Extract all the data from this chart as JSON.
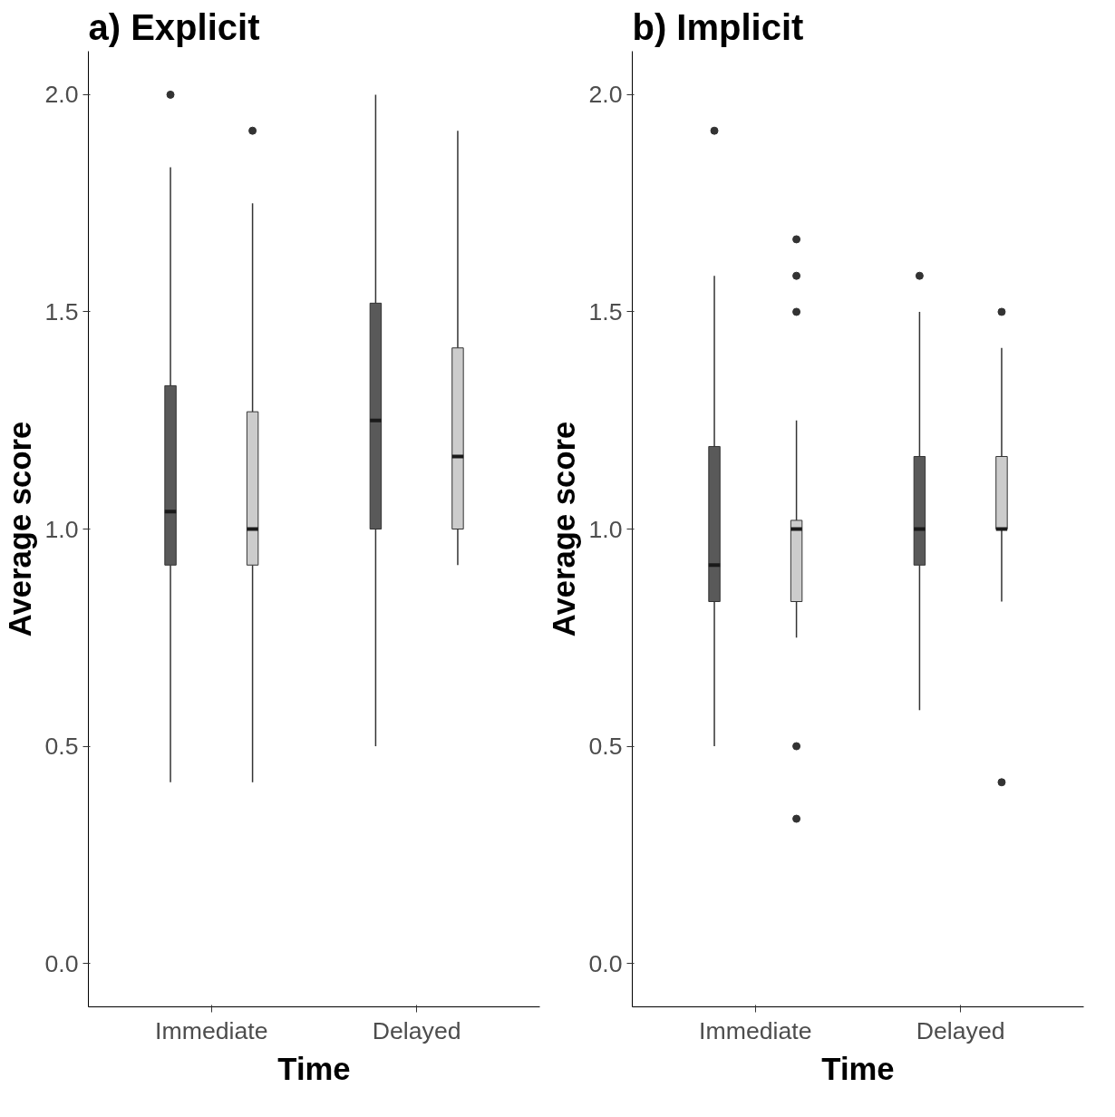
{
  "chart_data": [
    {
      "type": "box",
      "title": "a) Explicit",
      "xlabel": "Time",
      "ylabel": "Average score",
      "categories": [
        "Immediate",
        "Delayed"
      ],
      "ylim": [
        -0.1,
        2.1
      ],
      "yticks": [
        {
          "value": 0,
          "label": "0.0"
        },
        {
          "value": 0.5,
          "label": "0.5"
        },
        {
          "value": 1,
          "label": "1.0"
        },
        {
          "value": 1.5,
          "label": "1.5"
        },
        {
          "value": 2,
          "label": "2.0"
        }
      ],
      "grid": false,
      "series": [
        {
          "color": "#595959",
          "boxes": [
            {
              "low": 0.417,
              "q1": 0.917,
              "median": 1.04,
              "q3": 1.33,
              "high": 1.833,
              "outliers": [
                2.0
              ]
            },
            {
              "low": 0.5,
              "q1": 1.0,
              "median": 1.25,
              "q3": 1.52,
              "high": 2.0
            }
          ]
        },
        {
          "color": "#cccccc",
          "boxes": [
            {
              "low": 0.417,
              "q1": 0.917,
              "median": 1.0,
              "q3": 1.27,
              "high": 1.75,
              "outliers": [
                1.917
              ]
            },
            {
              "low": 0.917,
              "q1": 1.0,
              "median": 1.167,
              "q3": 1.417,
              "high": 1.917
            }
          ]
        }
      ]
    },
    {
      "type": "box",
      "title": "b) Implicit",
      "xlabel": "Time",
      "ylabel": "Average score",
      "categories": [
        "Immediate",
        "Delayed"
      ],
      "ylim": [
        -0.1,
        2.1
      ],
      "yticks": [
        {
          "value": 0,
          "label": "0.0"
        },
        {
          "value": 0.5,
          "label": "0.5"
        },
        {
          "value": 1,
          "label": "1.0"
        },
        {
          "value": 1.5,
          "label": "1.5"
        },
        {
          "value": 2,
          "label": "2.0"
        }
      ],
      "grid": false,
      "series": [
        {
          "color": "#595959",
          "boxes": [
            {
              "low": 0.5,
              "q1": 0.833,
              "median": 0.917,
              "q3": 1.19,
              "high": 1.583,
              "outliers": [
                1.917
              ]
            },
            {
              "low": 0.583,
              "q1": 0.917,
              "median": 1.0,
              "q3": 1.167,
              "high": 1.5,
              "outliers": [
                1.583
              ]
            }
          ]
        },
        {
          "color": "#cccccc",
          "boxes": [
            {
              "low": 0.75,
              "q1": 0.833,
              "median": 1.0,
              "q3": 1.02,
              "high": 1.25,
              "outliers": [
                1.667,
                1.583,
                1.5,
                0.5,
                0.333
              ]
            },
            {
              "low": 0.833,
              "q1": 1.0,
              "median": 1.0,
              "q3": 1.167,
              "high": 1.417,
              "outliers": [
                1.5,
                0.417
              ]
            }
          ]
        }
      ]
    }
  ]
}
